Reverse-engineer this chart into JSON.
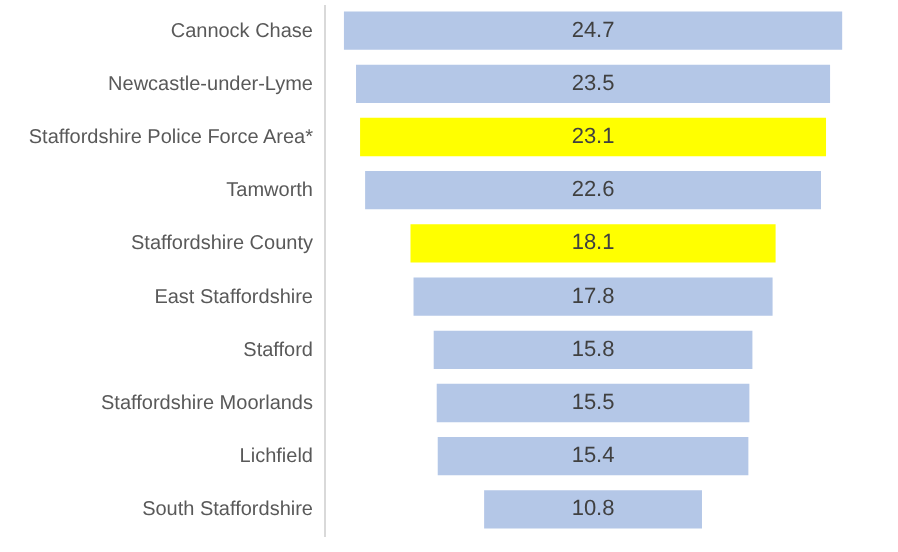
{
  "chart_data": {
    "type": "other",
    "categories": [
      "Cannock Chase",
      "Newcastle-under-Lyme",
      "Staffordshire Police Force Area*",
      "Tamworth",
      "Staffordshire County",
      "East Staffordshire",
      "Stafford",
      "Staffordshire Moorlands",
      "Lichfield",
      "South Staffordshire"
    ],
    "values": [
      24.7,
      23.5,
      23.1,
      22.6,
      18.1,
      17.8,
      15.8,
      15.5,
      15.4,
      10.8
    ],
    "colors": [
      "#b4c7e7",
      "#b4c7e7",
      "#ffff00",
      "#b4c7e7",
      "#ffff00",
      "#b4c7e7",
      "#b4c7e7",
      "#b4c7e7",
      "#b4c7e7",
      "#b4c7e7"
    ],
    "data_labels": true
  }
}
